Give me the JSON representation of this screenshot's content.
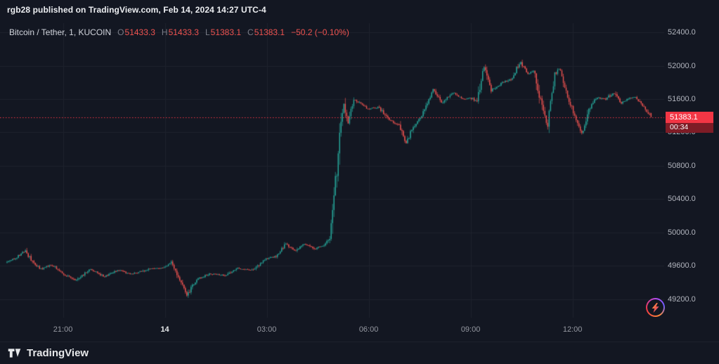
{
  "attribution": {
    "text": "rgb28 published on TradingView.com, Feb 14, 2024 14:27 UTC-4"
  },
  "legend": {
    "symbol": "Bitcoin / Tether, 1, KUCOIN",
    "ohlc": [
      {
        "label": "O",
        "value": "51433.3"
      },
      {
        "label": "H",
        "value": "51433.3"
      },
      {
        "label": "L",
        "value": "51383.1"
      },
      {
        "label": "C",
        "value": "51383.1"
      }
    ],
    "change": "−50.2 (−0.10%)"
  },
  "price_scale": {
    "badge": {
      "price": "51383.1",
      "countdown": "00:34"
    }
  },
  "footer": {
    "brand": "TradingView"
  },
  "icons": {
    "flash": "lightning-bolt",
    "logo": "tradingview-mark"
  },
  "colors": {
    "background": "#131722",
    "grid": "#1e222d",
    "up": "#26a69a",
    "down": "#ef5350",
    "price_line": "#f23645",
    "axis_text": "#b2b5be"
  },
  "chart_data": {
    "type": "candlestick",
    "title": "Bitcoin / Tether",
    "interval": "1",
    "exchange": "KUCOIN",
    "last": {
      "open": 51433.3,
      "high": 51433.3,
      "low": 51383.1,
      "close": 51383.1,
      "change": -50.2,
      "change_pct": -0.1
    },
    "price_line": 51383.1,
    "y_range": {
      "min": 48979,
      "max": 52510
    },
    "y_ticks": [
      {
        "v": 52400,
        "label": "52400.0"
      },
      {
        "v": 52000,
        "label": "52000.0"
      },
      {
        "v": 51600,
        "label": "51600.0"
      },
      {
        "v": 51200,
        "label": "51200.0"
      },
      {
        "v": 50800,
        "label": "50800.0"
      },
      {
        "v": 50400,
        "label": "50400.0"
      },
      {
        "v": 50000,
        "label": "50000.0"
      },
      {
        "v": 49600,
        "label": "49600.0"
      },
      {
        "v": 49200,
        "label": "49200.0"
      }
    ],
    "x_ticks": [
      {
        "label": "21:00",
        "t": 100,
        "em": false
      },
      {
        "label": "14",
        "t": 280,
        "em": true
      },
      {
        "label": "03:00",
        "t": 460,
        "em": false
      },
      {
        "label": "06:00",
        "t": 640,
        "em": false
      },
      {
        "label": "09:00",
        "t": 820,
        "em": false
      },
      {
        "label": "12:00",
        "t": 1000,
        "em": false
      }
    ],
    "anchors": [
      [
        0,
        49640
      ],
      [
        18,
        49700
      ],
      [
        35,
        49780
      ],
      [
        50,
        49620
      ],
      [
        63,
        49560
      ],
      [
        81,
        49615
      ],
      [
        106,
        49485
      ],
      [
        125,
        49430
      ],
      [
        150,
        49560
      ],
      [
        175,
        49470
      ],
      [
        199,
        49545
      ],
      [
        224,
        49500
      ],
      [
        255,
        49565
      ],
      [
        280,
        49575
      ],
      [
        292,
        49650
      ],
      [
        309,
        49400
      ],
      [
        320,
        49240
      ],
      [
        336,
        49430
      ],
      [
        361,
        49510
      ],
      [
        386,
        49480
      ],
      [
        410,
        49570
      ],
      [
        435,
        49550
      ],
      [
        460,
        49680
      ],
      [
        479,
        49720
      ],
      [
        495,
        49865
      ],
      [
        510,
        49780
      ],
      [
        528,
        49865
      ],
      [
        547,
        49800
      ],
      [
        562,
        49855
      ],
      [
        572,
        49920
      ],
      [
        580,
        50350
      ],
      [
        586,
        50900
      ],
      [
        592,
        51350
      ],
      [
        597,
        51560
      ],
      [
        605,
        51300
      ],
      [
        615,
        51600
      ],
      [
        628,
        51540
      ],
      [
        640,
        51480
      ],
      [
        659,
        51500
      ],
      [
        677,
        51350
      ],
      [
        696,
        51280
      ],
      [
        706,
        51060
      ],
      [
        721,
        51280
      ],
      [
        739,
        51450
      ],
      [
        755,
        51730
      ],
      [
        770,
        51550
      ],
      [
        789,
        51680
      ],
      [
        808,
        51600
      ],
      [
        820,
        51620
      ],
      [
        832,
        51570
      ],
      [
        845,
        51990
      ],
      [
        857,
        51700
      ],
      [
        876,
        51790
      ],
      [
        894,
        51850
      ],
      [
        909,
        52050
      ],
      [
        922,
        51900
      ],
      [
        934,
        51940
      ],
      [
        947,
        51500
      ],
      [
        957,
        51280
      ],
      [
        969,
        51880
      ],
      [
        978,
        51960
      ],
      [
        988,
        51700
      ],
      [
        997,
        51550
      ],
      [
        1009,
        51350
      ],
      [
        1019,
        51180
      ],
      [
        1031,
        51500
      ],
      [
        1044,
        51620
      ],
      [
        1059,
        51600
      ],
      [
        1074,
        51680
      ],
      [
        1087,
        51550
      ],
      [
        1099,
        51600
      ],
      [
        1112,
        51630
      ],
      [
        1125,
        51530
      ],
      [
        1140,
        51383.1
      ]
    ],
    "candles": {
      "count": 456,
      "minutes_total": 1140,
      "seed": 42,
      "noise": 13
    }
  }
}
